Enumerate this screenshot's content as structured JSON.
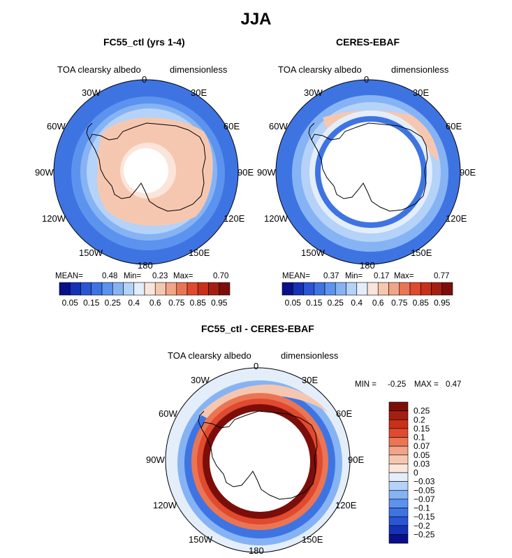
{
  "main_title": "JJA",
  "panels": {
    "left": {
      "title": "FC55_ctl (yrs 1-4)",
      "variable": "TOA clearsky albedo",
      "units": "dimensionless",
      "stats": {
        "mean_label": "MEAN=",
        "mean": "0.48",
        "min_label": "Min=",
        "min": "0.23",
        "max_label": "Max=",
        "max": "0.70"
      }
    },
    "right": {
      "title": "CERES-EBAF",
      "variable": "TOA clearsky albedo",
      "units": "dimensionless",
      "stats": {
        "mean_label": "MEAN=",
        "mean": "0.37",
        "min_label": "Min=",
        "min": "0.17",
        "max_label": "Max=",
        "max": "0.77"
      }
    },
    "diff": {
      "title": "FC55_ctl - CERES-EBAF",
      "variable": "TOA clearsky albedo",
      "units": "dimensionless",
      "stats": {
        "min_label": "MIN =",
        "min": "-0.25",
        "max_label": "MAX =",
        "max": "0.47"
      }
    }
  },
  "longitude_labels": {
    "lon_0": "0",
    "lon_30e": "30E",
    "lon_60e": "60E",
    "lon_90e": "90E",
    "lon_120e": "120E",
    "lon_150e": "150E",
    "lon_180": "180",
    "lon_150w": "150W",
    "lon_120w": "120W",
    "lon_90w": "90W",
    "lon_60w": "60W",
    "lon_30w": "30W"
  },
  "abs_colorbar": {
    "colors": [
      "#08108a",
      "#1531b6",
      "#2a55d6",
      "#3e74e2",
      "#5c93ee",
      "#86b3f4",
      "#b5d2f8",
      "#e4eefb",
      "#fbe5da",
      "#f6c7b0",
      "#f1a487",
      "#ea7555",
      "#e04a2e",
      "#c8301a",
      "#a51f10",
      "#7c0e0a"
    ],
    "tick_labels": [
      "0.05",
      "0.15",
      "0.25",
      "0.4",
      "0.6",
      "0.75",
      "0.85",
      "0.95"
    ]
  },
  "diff_colorbar": {
    "colors": [
      "#7c0e0a",
      "#a51f10",
      "#c8301a",
      "#e04a2e",
      "#ea7555",
      "#f1a487",
      "#f6c7b0",
      "#fbe5da",
      "#e4eefb",
      "#b5d2f8",
      "#86b3f4",
      "#5c93ee",
      "#3e74e2",
      "#2a55d6",
      "#1531b6",
      "#08108a"
    ],
    "tick_labels": [
      "0.25",
      "0.2",
      "0.15",
      "0.1",
      "0.07",
      "0.05",
      "0.03",
      "0",
      "−0.03",
      "−0.05",
      "−0.07",
      "−0.1",
      "−0.15",
      "−0.2",
      "−0.25"
    ]
  }
}
